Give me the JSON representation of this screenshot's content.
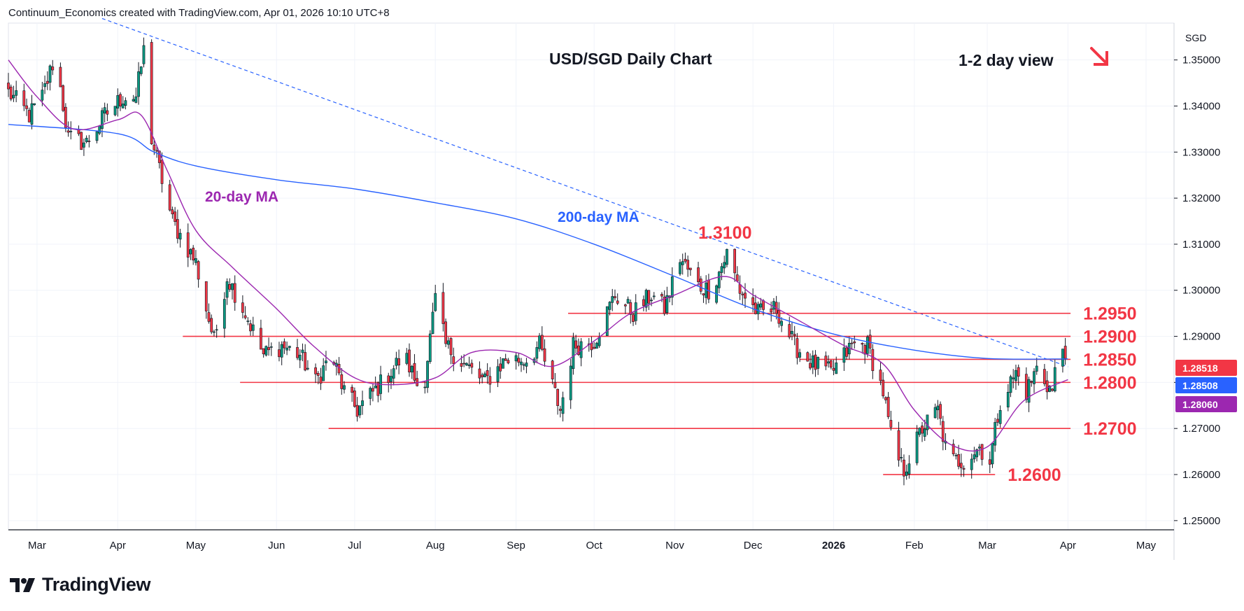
{
  "header": {
    "attribution": "Continuum_Economics created with TradingView.com, Apr 01, 2026 10:10 UTC+8"
  },
  "branding": {
    "logo_text": "TradingView",
    "logo_icon": "tradingview-logo-icon"
  },
  "colors": {
    "up": "#089981",
    "down": "#f23645",
    "ma20": "#9c27b0",
    "ma200": "#2962ff",
    "level": "#f23645",
    "grid": "#f0f3fa",
    "trend": "#2962ff"
  },
  "chart_data": {
    "type": "candlestick",
    "title": "USD/SGD Daily Chart",
    "view_label": "1-2 day view",
    "view_icon": "arrow-down-right-icon",
    "currency": "SGD",
    "ylim": [
      1.248,
      1.358
    ],
    "y_ticks": [
      "1.35000",
      "1.34000",
      "1.33000",
      "1.32000",
      "1.31000",
      "1.30000",
      "1.29000",
      "1.28000",
      "1.27000",
      "1.26000",
      "1.25000"
    ],
    "y_tick_values": [
      1.35,
      1.34,
      1.33,
      1.32,
      1.31,
      1.3,
      1.29,
      1.28,
      1.27,
      1.26,
      1.25
    ],
    "x_ticks": [
      "Mar",
      "Apr",
      "May",
      "Jun",
      "Jul",
      "Aug",
      "Sep",
      "Oct",
      "Nov",
      "Dec",
      "2026",
      "Feb",
      "Mar",
      "Apr",
      "May"
    ],
    "x_tick_dates": [
      "2025-03-01",
      "2025-04-01",
      "2025-05-01",
      "2025-06-01",
      "2025-07-01",
      "2025-08-01",
      "2025-09-01",
      "2025-10-01",
      "2025-11-01",
      "2025-12-01",
      "2026-01-01",
      "2026-02-01",
      "2026-03-01",
      "2026-04-01",
      "2026-05-01"
    ],
    "x_range": [
      "2025-02-18",
      "2026-05-01"
    ],
    "levels": [
      {
        "label": "1.3100",
        "value": 1.31,
        "line": false
      },
      {
        "label": "1.2950",
        "value": 1.295,
        "line": true,
        "from": "2025-09-21"
      },
      {
        "label": "1.2900",
        "value": 1.29,
        "line": true,
        "from": "2025-04-26"
      },
      {
        "label": "1.2850",
        "value": 1.285,
        "line": true,
        "from": "2025-12-19"
      },
      {
        "label": "1.2800",
        "value": 1.28,
        "line": true,
        "from": "2025-05-18"
      },
      {
        "label": "1.2700",
        "value": 1.27,
        "line": true,
        "from": "2025-06-21"
      },
      {
        "label": "1.2600",
        "value": 1.26,
        "line": true,
        "from": "2026-01-20"
      }
    ],
    "price_labels": [
      {
        "value": "1.28518",
        "y": 1.28518,
        "color": "#f23645"
      },
      {
        "value": "1.28508",
        "y": 1.28508,
        "color": "#2962ff"
      },
      {
        "value": "1.28060",
        "y": 1.2806,
        "color": "#9c27b0"
      }
    ],
    "trendline": [
      {
        "x": "2025-03-26",
        "y": 1.359
      },
      {
        "x": "2026-04-01",
        "y": 1.2834
      }
    ],
    "ma_labels": {
      "ma20": "20-day MA",
      "ma200": "200-day MA"
    },
    "ma200": [
      {
        "x": "2025-02-18",
        "y": 1.336
      },
      {
        "x": "2025-04-01",
        "y": 1.334
      },
      {
        "x": "2025-04-15",
        "y": 1.33
      },
      {
        "x": "2025-05-01",
        "y": 1.327
      },
      {
        "x": "2025-06-01",
        "y": 1.324
      },
      {
        "x": "2025-07-01",
        "y": 1.322
      },
      {
        "x": "2025-08-01",
        "y": 1.319
      },
      {
        "x": "2025-09-01",
        "y": 1.3155
      },
      {
        "x": "2025-10-01",
        "y": 1.31
      },
      {
        "x": "2025-11-01",
        "y": 1.303
      },
      {
        "x": "2025-12-01",
        "y": 1.296
      },
      {
        "x": "2026-01-01",
        "y": 1.2905
      },
      {
        "x": "2026-02-01",
        "y": 1.287
      },
      {
        "x": "2026-03-01",
        "y": 1.2852
      },
      {
        "x": "2026-04-01",
        "y": 1.2851
      }
    ],
    "ma20": [
      {
        "x": "2025-02-18",
        "y": 1.35
      },
      {
        "x": "2025-03-01",
        "y": 1.342
      },
      {
        "x": "2025-03-15",
        "y": 1.335
      },
      {
        "x": "2025-04-01",
        "y": 1.337
      },
      {
        "x": "2025-04-10",
        "y": 1.338
      },
      {
        "x": "2025-04-20",
        "y": 1.326
      },
      {
        "x": "2025-05-01",
        "y": 1.313
      },
      {
        "x": "2025-05-15",
        "y": 1.305
      },
      {
        "x": "2025-06-01",
        "y": 1.296
      },
      {
        "x": "2025-06-15",
        "y": 1.288
      },
      {
        "x": "2025-07-01",
        "y": 1.281
      },
      {
        "x": "2025-07-15",
        "y": 1.2795
      },
      {
        "x": "2025-08-01",
        "y": 1.281
      },
      {
        "x": "2025-08-15",
        "y": 1.2865
      },
      {
        "x": "2025-09-01",
        "y": 1.2865
      },
      {
        "x": "2025-09-15",
        "y": 1.2835
      },
      {
        "x": "2025-10-01",
        "y": 1.289
      },
      {
        "x": "2025-10-15",
        "y": 1.295
      },
      {
        "x": "2025-11-01",
        "y": 1.299
      },
      {
        "x": "2025-11-20",
        "y": 1.303
      },
      {
        "x": "2025-12-01",
        "y": 1.299
      },
      {
        "x": "2025-12-20",
        "y": 1.293
      },
      {
        "x": "2026-01-05",
        "y": 1.288
      },
      {
        "x": "2026-01-20",
        "y": 1.284
      },
      {
        "x": "2026-02-01",
        "y": 1.274
      },
      {
        "x": "2026-02-15",
        "y": 1.2665
      },
      {
        "x": "2026-03-01",
        "y": 1.266
      },
      {
        "x": "2026-03-15",
        "y": 1.276
      },
      {
        "x": "2026-04-01",
        "y": 1.2806
      }
    ],
    "anchors": [
      {
        "x": "2025-02-18",
        "y": 1.343
      },
      {
        "x": "2025-02-26",
        "y": 1.338
      },
      {
        "x": "2025-03-03",
        "y": 1.342
      },
      {
        "x": "2025-03-08",
        "y": 1.351
      },
      {
        "x": "2025-03-13",
        "y": 1.333
      },
      {
        "x": "2025-03-20",
        "y": 1.332
      },
      {
        "x": "2025-03-27",
        "y": 1.338
      },
      {
        "x": "2025-04-03",
        "y": 1.342
      },
      {
        "x": "2025-04-08",
        "y": 1.342
      },
      {
        "x": "2025-04-11",
        "y": 1.352
      },
      {
        "x": "2025-04-14",
        "y": 1.333
      },
      {
        "x": "2025-04-22",
        "y": 1.315
      },
      {
        "x": "2025-05-01",
        "y": 1.306
      },
      {
        "x": "2025-05-05",
        "y": 1.296
      },
      {
        "x": "2025-05-08",
        "y": 1.289
      },
      {
        "x": "2025-05-13",
        "y": 1.303
      },
      {
        "x": "2025-05-20",
        "y": 1.295
      },
      {
        "x": "2025-05-27",
        "y": 1.286
      },
      {
        "x": "2025-06-03",
        "y": 1.288
      },
      {
        "x": "2025-06-10",
        "y": 1.286
      },
      {
        "x": "2025-06-16",
        "y": 1.28
      },
      {
        "x": "2025-06-22",
        "y": 1.286
      },
      {
        "x": "2025-06-27",
        "y": 1.278
      },
      {
        "x": "2025-07-02",
        "y": 1.274
      },
      {
        "x": "2025-07-10",
        "y": 1.279
      },
      {
        "x": "2025-07-20",
        "y": 1.286
      },
      {
        "x": "2025-07-27",
        "y": 1.277
      },
      {
        "x": "2025-08-01",
        "y": 1.298
      },
      {
        "x": "2025-08-05",
        "y": 1.288
      },
      {
        "x": "2025-08-12",
        "y": 1.284
      },
      {
        "x": "2025-08-20",
        "y": 1.28
      },
      {
        "x": "2025-08-28",
        "y": 1.285
      },
      {
        "x": "2025-09-05",
        "y": 1.285
      },
      {
        "x": "2025-09-10",
        "y": 1.288
      },
      {
        "x": "2025-09-18",
        "y": 1.274
      },
      {
        "x": "2025-09-23",
        "y": 1.288
      },
      {
        "x": "2025-10-01",
        "y": 1.289
      },
      {
        "x": "2025-10-09",
        "y": 1.299
      },
      {
        "x": "2025-10-16",
        "y": 1.295
      },
      {
        "x": "2025-10-23",
        "y": 1.299
      },
      {
        "x": "2025-10-28",
        "y": 1.296
      },
      {
        "x": "2025-11-03",
        "y": 1.307
      },
      {
        "x": "2025-11-10",
        "y": 1.301
      },
      {
        "x": "2025-11-15",
        "y": 1.3
      },
      {
        "x": "2025-11-21",
        "y": 1.308
      },
      {
        "x": "2025-11-26",
        "y": 1.3
      },
      {
        "x": "2025-12-03",
        "y": 1.295
      },
      {
        "x": "2025-12-10",
        "y": 1.296
      },
      {
        "x": "2025-12-17",
        "y": 1.288
      },
      {
        "x": "2025-12-24",
        "y": 1.284
      },
      {
        "x": "2025-12-31",
        "y": 1.282
      },
      {
        "x": "2026-01-08",
        "y": 1.288
      },
      {
        "x": "2026-01-14",
        "y": 1.288
      },
      {
        "x": "2026-01-20",
        "y": 1.278
      },
      {
        "x": "2026-01-24",
        "y": 1.265
      },
      {
        "x": "2026-01-28",
        "y": 1.261
      },
      {
        "x": "2026-02-04",
        "y": 1.27
      },
      {
        "x": "2026-02-10",
        "y": 1.274
      },
      {
        "x": "2026-02-14",
        "y": 1.263
      },
      {
        "x": "2026-02-20",
        "y": 1.263
      },
      {
        "x": "2026-02-26",
        "y": 1.266
      },
      {
        "x": "2026-03-02",
        "y": 1.263
      },
      {
        "x": "2026-03-06",
        "y": 1.276
      },
      {
        "x": "2026-03-12",
        "y": 1.282
      },
      {
        "x": "2026-03-16",
        "y": 1.278
      },
      {
        "x": "2026-03-20",
        "y": 1.283
      },
      {
        "x": "2026-03-26",
        "y": 1.278
      },
      {
        "x": "2026-03-29",
        "y": 1.29
      },
      {
        "x": "2026-03-31",
        "y": 1.2852
      }
    ]
  }
}
